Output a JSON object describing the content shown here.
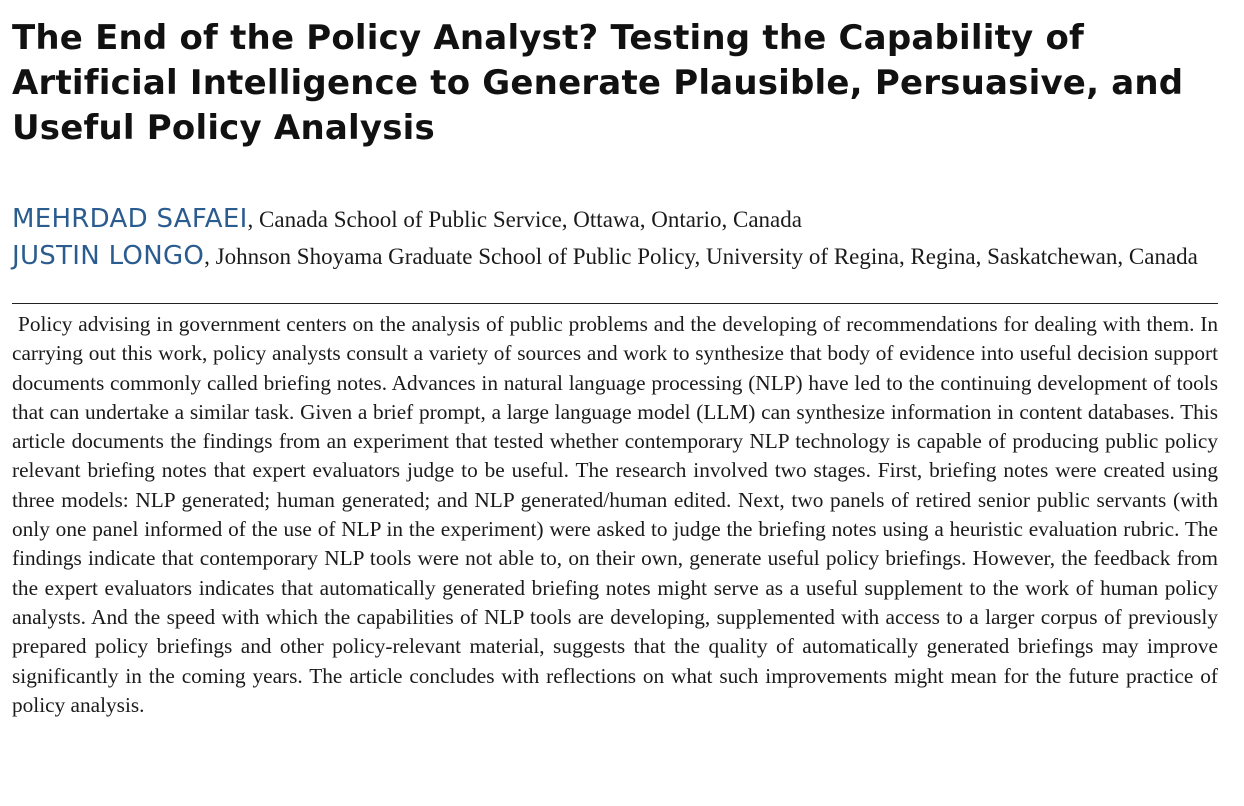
{
  "paper": {
    "title": "The End of the Policy Analyst? Testing the Capability of Artificial Intelligence to Generate Plausible, Persuasive, and Useful Policy Analysis",
    "authors": [
      {
        "name": "MEHRDAD SAFAEI",
        "affiliation": ", Canada School of Public Service, Ottawa, Ontario, Canada"
      },
      {
        "name": "JUSTIN LONGO",
        "affiliation": ", Johnson Shoyama Graduate School of Public Policy, University of Regina, Regina, Saskatchewan, Canada"
      }
    ],
    "abstract": "Policy advising in government centers on the analysis of public problems and the developing of recommendations for dealing with them. In carrying out this work, policy analysts consult a variety of sources and work to synthesize that body of evidence into useful decision support documents commonly called briefing notes. Advances in natural language processing (NLP) have led to the continuing development of tools that can undertake a similar task. Given a brief prompt, a large language model (LLM) can synthesize information in content databases. This article documents the findings from an experiment that tested whether contemporary NLP technology is capable of producing public policy relevant briefing notes that expert evaluators judge to be useful. The research involved two stages. First, briefing notes were created using three models: NLP generated; human generated; and NLP generated/human edited. Next, two panels of retired senior public servants (with only one panel informed of the use of NLP in the experiment) were asked to judge the briefing notes using a heuristic evaluation rubric. The findings indicate that contemporary NLP tools were not able to, on their own, generate useful policy briefings. However, the feedback from the expert evaluators indicates that automatically generated briefing notes might serve as a useful supplement to the work of human policy analysts. And the speed with which the capabilities of NLP tools are developing, supplemented with access to a larger corpus of previously prepared policy briefings and other policy-relevant material, suggests that the quality of automatically generated briefings may improve significantly in the coming years. The article concludes with reflections on what such improvements might mean for the future practice of policy analysis."
  },
  "colors": {
    "author_name": "#2b5c8f",
    "text": "#1a1a1a"
  }
}
